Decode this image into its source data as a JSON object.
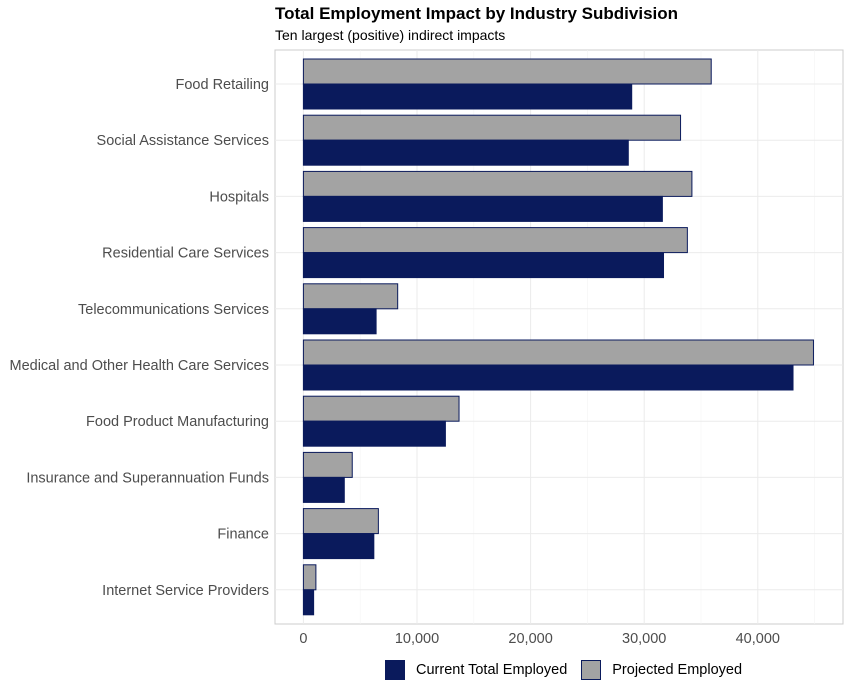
{
  "chart_data": {
    "type": "bar",
    "orientation": "horizontal",
    "title": "Total Employment Impact by Industry Subdivision",
    "subtitle": "Ten largest (positive) indirect impacts",
    "xlabel": "",
    "ylabel": "",
    "xlim": [
      -2500,
      47500
    ],
    "x_ticks": [
      0,
      10000,
      20000,
      30000,
      40000
    ],
    "x_tick_labels": [
      "0",
      "10,000",
      "20,000",
      "30,000",
      "40,000"
    ],
    "grid": true,
    "legend_position": "bottom",
    "categories": [
      "Food Retailing",
      "Social Assistance Services",
      "Hospitals",
      "Residential Care Services",
      "Telecommunications Services",
      "Medical and Other Health Care Services",
      "Food Product Manufacturing",
      "Insurance and Superannuation Funds",
      "Finance",
      "Internet Service Providers"
    ],
    "series": [
      {
        "name": "Current Total Employed",
        "color": "#0a1a5c",
        "values": [
          28900,
          28600,
          31600,
          31700,
          6400,
          43100,
          12500,
          3600,
          6200,
          900
        ]
      },
      {
        "name": "Projected Employed",
        "color": "#a3a3a3",
        "values": [
          35900,
          33200,
          34200,
          33800,
          8300,
          44900,
          13700,
          4300,
          6600,
          1100
        ]
      }
    ]
  }
}
